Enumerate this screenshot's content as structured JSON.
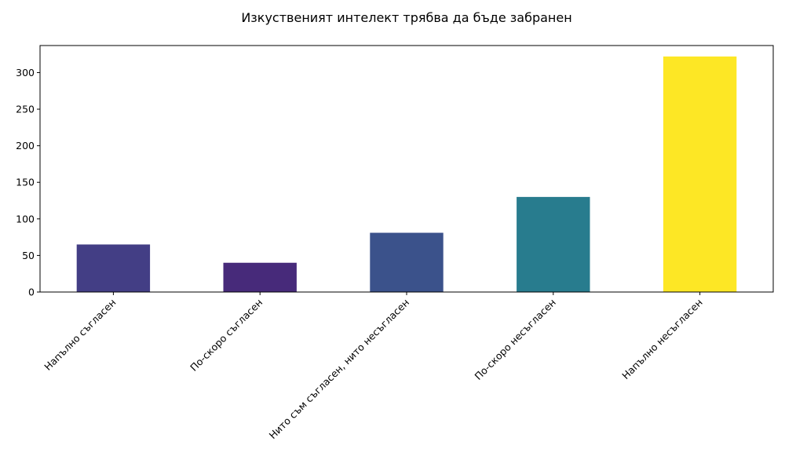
{
  "chart_data": {
    "type": "bar",
    "title": "Изкуственият интелект трябва да бъде забранен",
    "xlabel": "",
    "ylabel": "",
    "categories": [
      "Напълно съгласен",
      "По-скоро съгласен",
      "Нито съм съгласен, нито несъгласен",
      "По-скоро несъгласен",
      "Напълно несъгласен"
    ],
    "values": [
      65,
      40,
      81,
      130,
      322
    ],
    "colors": [
      "#433e85",
      "#472a7a",
      "#3b528b",
      "#287c8e",
      "#fde725"
    ],
    "ylim": [
      0,
      337
    ],
    "yticks": [
      0,
      50,
      100,
      150,
      200,
      250,
      300
    ],
    "grid": false,
    "legend": "none"
  }
}
